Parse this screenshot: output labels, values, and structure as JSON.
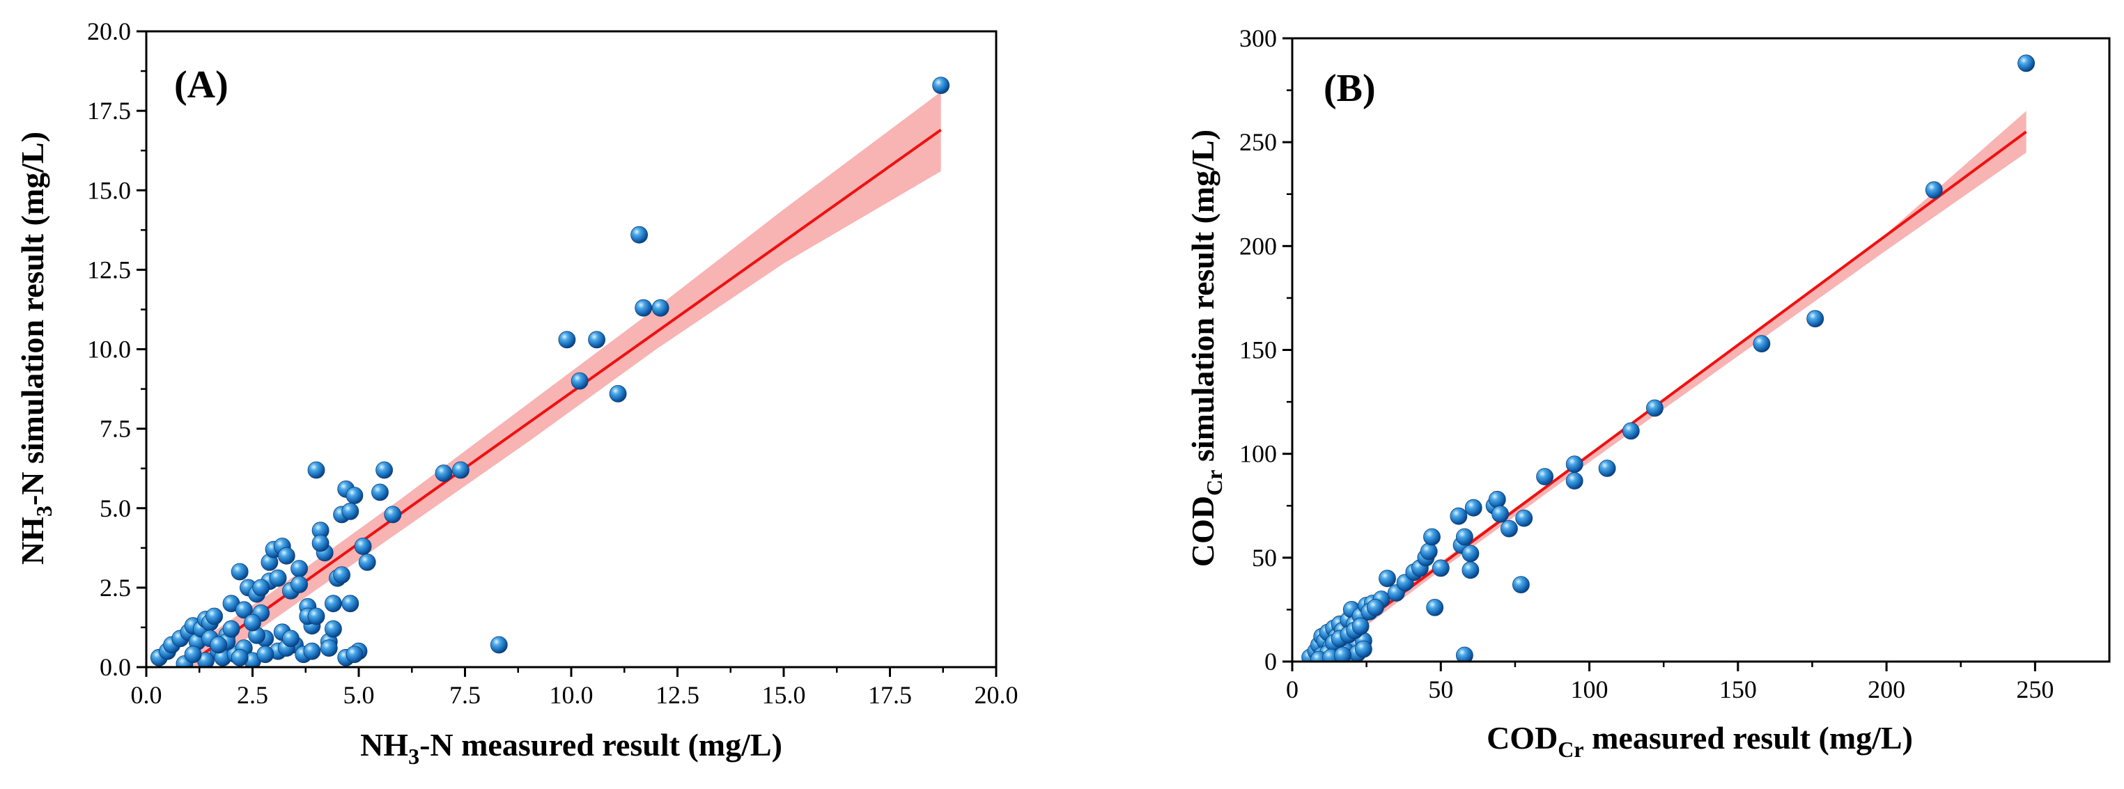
{
  "chart_data": [
    {
      "type": "scatter",
      "panel_label": "(A)",
      "xlabel_parts": [
        "NH",
        "3",
        "-N measured result (mg/L)"
      ],
      "ylabel_parts": [
        "NH",
        "3",
        "-N simulation result (mg/L)"
      ],
      "xlim": [
        0,
        20
      ],
      "ylim": [
        0,
        20
      ],
      "xticks": [
        "0.0",
        "2.5",
        "5.0",
        "7.5",
        "10.0",
        "12.5",
        "15.0",
        "17.5",
        "20.0"
      ],
      "yticks": [
        "0.0",
        "2.5",
        "5.0",
        "7.5",
        "10.0",
        "12.5",
        "15.0",
        "17.5",
        "20.0"
      ],
      "fit": {
        "x": [
          0.9,
          18.7
        ],
        "y": [
          0.0,
          16.9
        ]
      },
      "band": {
        "x": [
          0.9,
          3,
          6,
          9,
          12,
          15,
          18.7
        ],
        "upper": [
          0.5,
          2.4,
          5.3,
          8.3,
          11.3,
          14.4,
          18.1
        ],
        "lower": [
          -0.5,
          1.5,
          4.3,
          7.1,
          10.0,
          12.7,
          15.6
        ]
      },
      "points": {
        "x": [
          0.3,
          0.5,
          0.6,
          0.8,
          1.0,
          1.1,
          1.2,
          1.3,
          1.4,
          1.5,
          1.6,
          1.7,
          1.8,
          1.9,
          2.0,
          2.1,
          2.2,
          2.3,
          2.4,
          2.5,
          2.6,
          2.7,
          2.8,
          2.9,
          3.0,
          3.1,
          3.2,
          3.3,
          3.4,
          3.5,
          3.6,
          3.7,
          3.8,
          3.9,
          4.0,
          4.1,
          4.2,
          4.3,
          4.4,
          4.5,
          4.6,
          4.7,
          4.8,
          4.9,
          5.0,
          5.2,
          5.5,
          5.6,
          5.8,
          7.0,
          7.4,
          8.3,
          9.9,
          10.2,
          10.6,
          11.1,
          11.6,
          11.7,
          12.1,
          18.7,
          0.9,
          1.4,
          2.2,
          2.8,
          3.3,
          3.9,
          4.3,
          4.7,
          1.1,
          1.9,
          2.6,
          3.2,
          3.8,
          4.4,
          2.0,
          2.9,
          3.6,
          4.1,
          4.9,
          2.3,
          1.5,
          2.7,
          3.1,
          4.0,
          4.6,
          5.1,
          3.4,
          2.5,
          1.7,
          4.8
        ],
        "y": [
          0.3,
          0.5,
          0.7,
          0.9,
          1.1,
          1.3,
          0.8,
          1.2,
          1.5,
          1.4,
          1.6,
          0.5,
          0.3,
          1.0,
          2.0,
          0.4,
          3.0,
          0.6,
          2.5,
          0.2,
          2.3,
          1.7,
          0.9,
          3.3,
          3.7,
          0.5,
          3.8,
          3.5,
          2.4,
          0.7,
          3.1,
          0.4,
          1.9,
          1.3,
          6.2,
          4.3,
          3.6,
          0.8,
          1.2,
          2.8,
          4.8,
          5.6,
          2.0,
          5.4,
          0.5,
          3.3,
          5.5,
          6.2,
          4.8,
          6.1,
          6.2,
          0.7,
          10.3,
          9.0,
          10.3,
          8.6,
          13.6,
          11.3,
          11.3,
          18.3,
          0.1,
          0.2,
          0.3,
          0.4,
          0.6,
          0.5,
          0.6,
          0.3,
          0.4,
          0.8,
          1.0,
          1.1,
          1.6,
          2.0,
          1.2,
          2.7,
          2.6,
          3.9,
          0.4,
          1.8,
          0.9,
          2.5,
          2.8,
          1.6,
          2.9,
          3.8,
          0.9,
          1.4,
          0.7,
          4.9
        ]
      }
    },
    {
      "type": "scatter",
      "panel_label": "(B)",
      "xlabel_parts": [
        "COD",
        "Cr",
        " measured result (mg/L)"
      ],
      "ylabel_parts": [
        "COD",
        "Cr",
        " simulation result (mg/L)"
      ],
      "xlim": [
        0,
        275
      ],
      "ylim": [
        0,
        300
      ],
      "xticks": [
        "0",
        "50",
        "100",
        "150",
        "200",
        "250"
      ],
      "xtick_values": [
        0,
        50,
        100,
        150,
        200,
        250
      ],
      "yticks": [
        "0",
        "50",
        "100",
        "150",
        "200",
        "250",
        "300"
      ],
      "ytick_values": [
        0,
        50,
        100,
        150,
        200,
        250,
        300
      ],
      "fit": {
        "x": [
          6,
          247
        ],
        "y": [
          0,
          255
        ]
      },
      "band": {
        "x": [
          6,
          50,
          100,
          150,
          200,
          247
        ],
        "upper": [
          3,
          48,
          100,
          153,
          206,
          265
        ],
        "lower": [
          -3,
          44,
          96,
          147,
          198,
          245
        ]
      },
      "points": {
        "x": [
          6,
          8,
          9,
          10,
          11,
          12,
          13,
          14,
          15,
          16,
          17,
          18,
          19,
          20,
          21,
          22,
          23,
          24,
          25,
          27,
          30,
          32,
          35,
          38,
          41,
          43,
          45,
          46,
          47,
          48,
          50,
          56,
          57,
          58,
          58,
          60,
          60,
          61,
          68,
          69,
          70,
          73,
          77,
          78,
          85,
          95,
          95,
          106,
          114,
          122,
          158,
          176,
          216,
          247,
          10,
          12,
          15,
          18,
          20,
          22,
          24,
          14,
          16,
          19,
          21,
          23,
          9,
          13,
          17,
          26,
          28
        ],
        "y": [
          2,
          5,
          8,
          12,
          10,
          14,
          7,
          16,
          12,
          18,
          15,
          10,
          20,
          25,
          18,
          8,
          22,
          10,
          27,
          28,
          30,
          40,
          33,
          38,
          43,
          45,
          50,
          53,
          60,
          26,
          45,
          70,
          56,
          3,
          60,
          44,
          52,
          74,
          75,
          78,
          71,
          64,
          37,
          69,
          89,
          87,
          95,
          93,
          111,
          122,
          153,
          165,
          227,
          288,
          3,
          4,
          6,
          5,
          2,
          4,
          6,
          9,
          11,
          13,
          15,
          17,
          1,
          2,
          3,
          24,
          26
        ]
      }
    }
  ]
}
